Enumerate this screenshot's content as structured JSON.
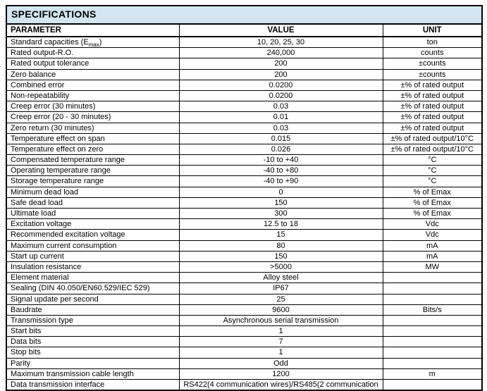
{
  "table": {
    "title": "SPECIFICATIONS",
    "title_bg": "#d3e6f2",
    "border_color": "#000000",
    "columns": [
      "PARAMETER",
      "VALUE",
      "UNIT"
    ],
    "rows": [
      {
        "parameter": "Standard capacities (E",
        "parameter_sub": "max",
        "parameter_suffix": ")",
        "value": "10, 20, 25, 30",
        "unit": "ton"
      },
      {
        "parameter": "Rated output-R.O.",
        "value": "240,000",
        "unit": "counts"
      },
      {
        "parameter": "Rated output tolerance",
        "value": "200",
        "unit": "±counts"
      },
      {
        "parameter": "Zero balance",
        "value": "200",
        "unit": "±counts"
      },
      {
        "parameter": "Combined error",
        "value": "0.0200",
        "unit": "±% of rated output"
      },
      {
        "parameter": "Non-repeatability",
        "value": "0.0200",
        "unit": "±% of rated output"
      },
      {
        "parameter": "Creep error (30 minutes)",
        "value": "0.03",
        "unit": "±% of rated output"
      },
      {
        "parameter": "Creep error (20 - 30 minutes)",
        "value": "0.01",
        "unit": "±% of rated output"
      },
      {
        "parameter": "Zero return (30 minutes)",
        "value": "0.03",
        "unit": "±% of rated output"
      },
      {
        "parameter": "Temperature effect on span",
        "value": "0.015",
        "unit": "±% of rated output/10°C"
      },
      {
        "parameter": "Temperature effect on zero",
        "value": "0.026",
        "unit": "±% of rated output/10°C"
      },
      {
        "parameter": "Compensated temperature range",
        "value": "-10 to +40",
        "unit": "°C"
      },
      {
        "parameter": "Operating temperature range",
        "value": "-40 to +80",
        "unit": "°C"
      },
      {
        "parameter": "Storage temperature range",
        "value": "-40 to +90",
        "unit": "°C"
      },
      {
        "parameter": "Minimum dead load",
        "value": "0",
        "unit": "% of Emax"
      },
      {
        "parameter": "Safe dead load",
        "value": "150",
        "unit": "% of Emax"
      },
      {
        "parameter": "Ultimate load",
        "value": "300",
        "unit": "% of Emax"
      },
      {
        "parameter": "Excitation voltage",
        "value": "12.5 to 18",
        "unit": "Vdc"
      },
      {
        "parameter": "Recommended excitation voltage",
        "value": "15",
        "unit": "Vdc"
      },
      {
        "parameter": "Maximum current consumption",
        "value": "80",
        "unit": "mA"
      },
      {
        "parameter": "Start up current",
        "value": "150",
        "unit": "mA"
      },
      {
        "parameter": "Insulation resistance",
        "value": ">5000",
        "unit": "MW"
      },
      {
        "parameter": "Element material",
        "value": "Alloy steel",
        "unit": ""
      },
      {
        "parameter": "Sealing (DIN 40.050/EN60.529/IEC 529)",
        "value": "IP67",
        "unit": ""
      },
      {
        "parameter": "Signal update per second",
        "value": "25",
        "unit": ""
      },
      {
        "parameter": "Baudrate",
        "value": "9600",
        "unit": "Bits/s"
      },
      {
        "parameter": "Transmission type",
        "value": "Asynchronous serial transmission",
        "unit": ""
      },
      {
        "parameter": "Start bits",
        "value": "1",
        "unit": ""
      },
      {
        "parameter": "Data bits",
        "value": "7",
        "unit": ""
      },
      {
        "parameter": "Stop bits",
        "value": "1",
        "unit": ""
      },
      {
        "parameter": "Parity",
        "value": "Odd",
        "unit": ""
      },
      {
        "parameter": "Maximum transmission cable length",
        "value": "1200",
        "unit": "m"
      },
      {
        "parameter": "Data transmission interface",
        "value": "RS422(4 communication wires)/RS485(2 communication",
        "unit": ""
      }
    ]
  }
}
